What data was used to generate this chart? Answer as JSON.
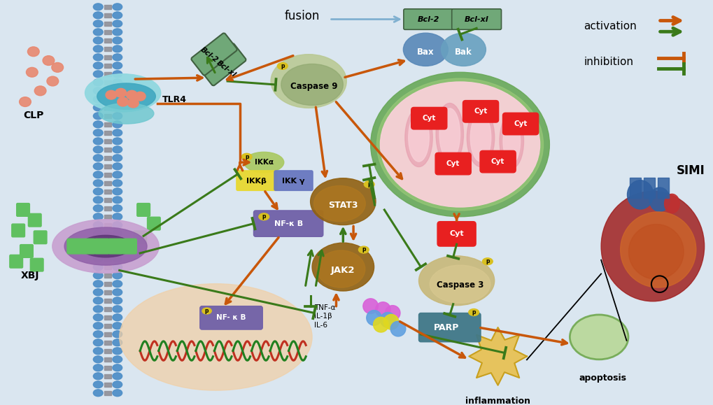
{
  "background_color": "#dae6f0",
  "colors": {
    "orange": "#c8570a",
    "green": "#3a7a1a",
    "membrane_dot": "#5090c8",
    "membrane_bar": "#a0a8b0",
    "tlr4_outer": "#70c8d0",
    "tlr4_inner": "#40a8c0",
    "tlr4_lobe": "#90d8e0",
    "clp_particle": "#e88870",
    "xbj_outer": "#c8a0d0",
    "xbj_inner": "#8850a0",
    "xbj_core": "#603878",
    "xbj_receptor": "#60c060",
    "bcl2_box": "#70a878",
    "bax_color": "#5888b8",
    "bak_color": "#68a0c0",
    "caspase9_color": "#70a878",
    "mito_outer": "#68a858",
    "mito_mid": "#98c878",
    "mito_inner": "#f0c0c8",
    "mito_crista": "#e090a0",
    "cyt_color": "#e82020",
    "ikk_alpha": "#a8c860",
    "ikk_beta": "#e8d830",
    "ikk_gamma": "#6878c0",
    "nfkb_color": "#7060a8",
    "p_yellow": "#d8c020",
    "stat3_color": "#906010",
    "jak2_color": "#906010",
    "nucleus_color": "#f0d0a8",
    "cell_color": "#f0d8b8",
    "caspase3_color": "#c8b878",
    "parp_color": "#407888",
    "fusion_line": "#80b0d0",
    "inflammation_color": "#e8c050",
    "apoptosis_color": "#b8d898",
    "heart_dark": "#8b1a1a",
    "heart_mid": "#c03030",
    "heart_vessel": "#3060a0",
    "heart_tissue": "#d06828"
  },
  "labels": {
    "CLP": "CLP",
    "TLR4": "TLR4",
    "XBJ": "XBJ",
    "Bcl2": "Bcl-2",
    "BclXL": "Bcl-xl",
    "Bax": "Bax",
    "Bak": "Bak",
    "Caspase9": "Caspase 9",
    "Caspase3": "Caspase 3",
    "IKKa": "IKKα",
    "IKKb": "IKKβ",
    "IKKg": "IKK γ",
    "NFkB": "NF-κ B",
    "NFkB2": "NF- κ B",
    "STAT3": "STAT3",
    "JAK2": "JAK2",
    "Cyt": "Cyt",
    "PARP": "PARP",
    "TNFa": "TNF-α",
    "IL1b": "IL-1β",
    "IL6": "IL-6",
    "fusion": "fusion",
    "inflammation": "inflammation",
    "apoptosis": "apoptosis",
    "activation": "activation",
    "inhibition": "inhibition",
    "SIMI": "SIMI",
    "p": "p"
  }
}
